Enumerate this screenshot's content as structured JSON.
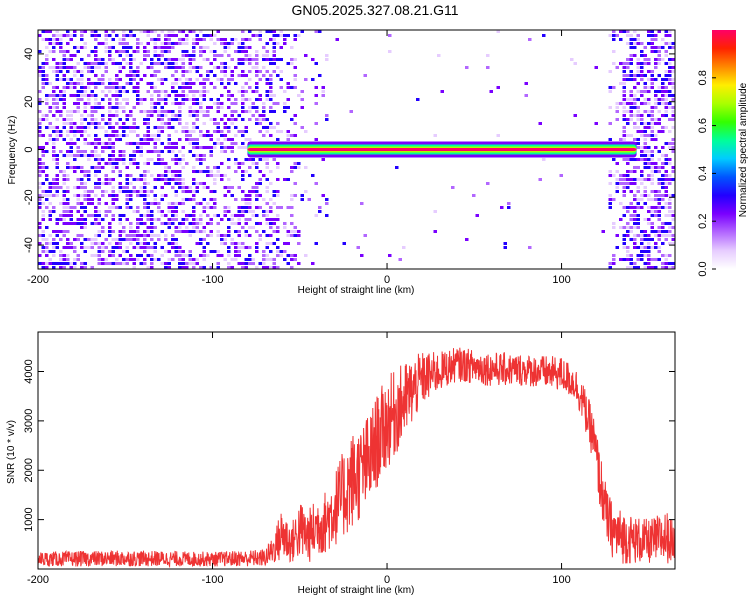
{
  "title": "GN05.2025.327.08.21.G11",
  "chart_data": [
    {
      "type": "heatmap",
      "xlabel": "Height of straight line (km)",
      "ylabel": "Frequency (Hz)",
      "xlim": [
        -200,
        165
      ],
      "ylim": [
        -50,
        50
      ],
      "xticks": [
        -200,
        -100,
        0,
        100
      ],
      "yticks": [
        -40,
        -20,
        0,
        20,
        40
      ],
      "colorbar": {
        "label": "Normalized spectral amplitude",
        "range": [
          0,
          1
        ],
        "ticks": [
          "0.0",
          "0.2",
          "0.4",
          "0.6",
          "0.8"
        ],
        "colors": [
          "#ffffff",
          "#e6ccff",
          "#b266ff",
          "#7a00ff",
          "#2200ff",
          "#0055ff",
          "#00ccff",
          "#00ff99",
          "#33ff00",
          "#aaff00",
          "#ffee00",
          "#ff8800",
          "#ff2200",
          "#ff0066"
        ]
      },
      "regions": [
        {
          "x_from": -200,
          "x_to": -60,
          "amplitude": "0.1–0.3 broadband noise"
        },
        {
          "x_from": -80,
          "x_to": 143,
          "frequency": 0,
          "amplitude": "0.9–1.0 narrow line"
        },
        {
          "x_from": 128,
          "x_to": 165,
          "amplitude": "0.1–0.3 broadband noise"
        }
      ]
    },
    {
      "type": "line",
      "xlabel": "Height of straight line (km)",
      "ylabel": "SNR (10 * v/v)",
      "xlim": [
        -200,
        165
      ],
      "ylim": [
        0,
        4800
      ],
      "xticks": [
        -200,
        -100,
        0,
        100
      ],
      "yticks": [
        1000,
        2000,
        3000,
        4000
      ],
      "color": "#ee3333",
      "envelope": {
        "x": [
          -200,
          -150,
          -100,
          -70,
          -65,
          -60,
          -55,
          -50,
          -45,
          -40,
          -35,
          -30,
          -25,
          -20,
          -15,
          -10,
          -5,
          0,
          10,
          20,
          30,
          40,
          60,
          80,
          100,
          108,
          112,
          118,
          122,
          126,
          130,
          135,
          140,
          150,
          160,
          165
        ],
        "low": [
          50,
          50,
          50,
          50,
          100,
          150,
          100,
          200,
          100,
          250,
          300,
          450,
          600,
          800,
          1000,
          1200,
          1700,
          2000,
          2600,
          3300,
          3600,
          3800,
          3700,
          3700,
          3600,
          3400,
          3000,
          2200,
          1200,
          500,
          150,
          100,
          100,
          100,
          100,
          150
        ],
        "high": [
          350,
          380,
          350,
          400,
          700,
          1300,
          900,
          1400,
          1200,
          1500,
          1600,
          2000,
          2400,
          2800,
          2900,
          3200,
          3600,
          3900,
          4200,
          4400,
          4400,
          4500,
          4400,
          4350,
          4300,
          4100,
          3800,
          3200,
          2400,
          1600,
          1300,
          1200,
          1100,
          1000,
          1200,
          900
        ]
      }
    }
  ]
}
